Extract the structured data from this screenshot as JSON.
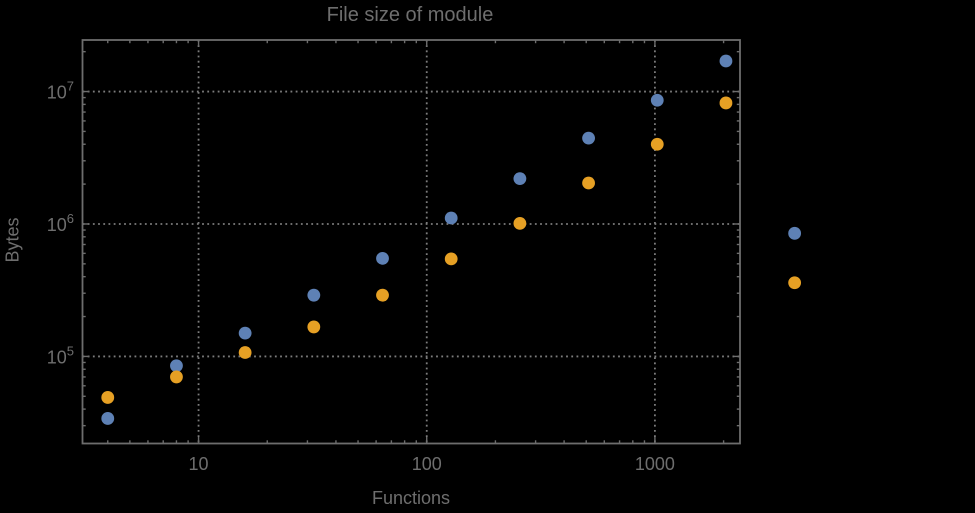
{
  "colors": {
    "background": "#000000",
    "frame": "#6d6d6d",
    "gridline": "#7c7c7c",
    "text": "#6e6e6e",
    "series_blue": "#5e81b5",
    "series_orange": "#e6a024"
  },
  "chart_data": {
    "type": "scatter",
    "title": "File size of module",
    "xlabel": "Functions",
    "ylabel": "Bytes",
    "x_scale": "log",
    "y_scale": "log",
    "xlim": [
      3.1,
      2360
    ],
    "ylim": [
      22000,
      24500000
    ],
    "grid": "dotted gray lines at powers of ten",
    "legend": "none",
    "x_ticks": [
      {
        "value": 10,
        "label": "10"
      },
      {
        "value": 100,
        "label": "100"
      },
      {
        "value": 1000,
        "label": "1000"
      }
    ],
    "y_ticks": [
      {
        "value": 100000,
        "base": "10",
        "exp": "5"
      },
      {
        "value": 1000000,
        "base": "10",
        "exp": "6"
      },
      {
        "value": 10000000,
        "base": "10",
        "exp": "7"
      }
    ],
    "series": [
      {
        "name": "series-blue",
        "color": "#5e81b5",
        "points": [
          [
            4,
            34000
          ],
          [
            8,
            85000
          ],
          [
            16,
            150000
          ],
          [
            32,
            290000
          ],
          [
            64,
            550000
          ],
          [
            128,
            1110000
          ],
          [
            256,
            2200000
          ],
          [
            512,
            4450000
          ],
          [
            1024,
            8600000
          ],
          [
            2048,
            17000000
          ],
          [
            4096,
            850000
          ]
        ]
      },
      {
        "name": "series-orange",
        "color": "#e6a024",
        "points": [
          [
            4,
            49000
          ],
          [
            8,
            70000
          ],
          [
            16,
            107000
          ],
          [
            32,
            167000
          ],
          [
            64,
            290000
          ],
          [
            128,
            545000
          ],
          [
            256,
            1010000
          ],
          [
            512,
            2040000
          ],
          [
            1024,
            4000000
          ],
          [
            2048,
            8200000
          ],
          [
            4096,
            360000
          ]
        ]
      }
    ]
  }
}
